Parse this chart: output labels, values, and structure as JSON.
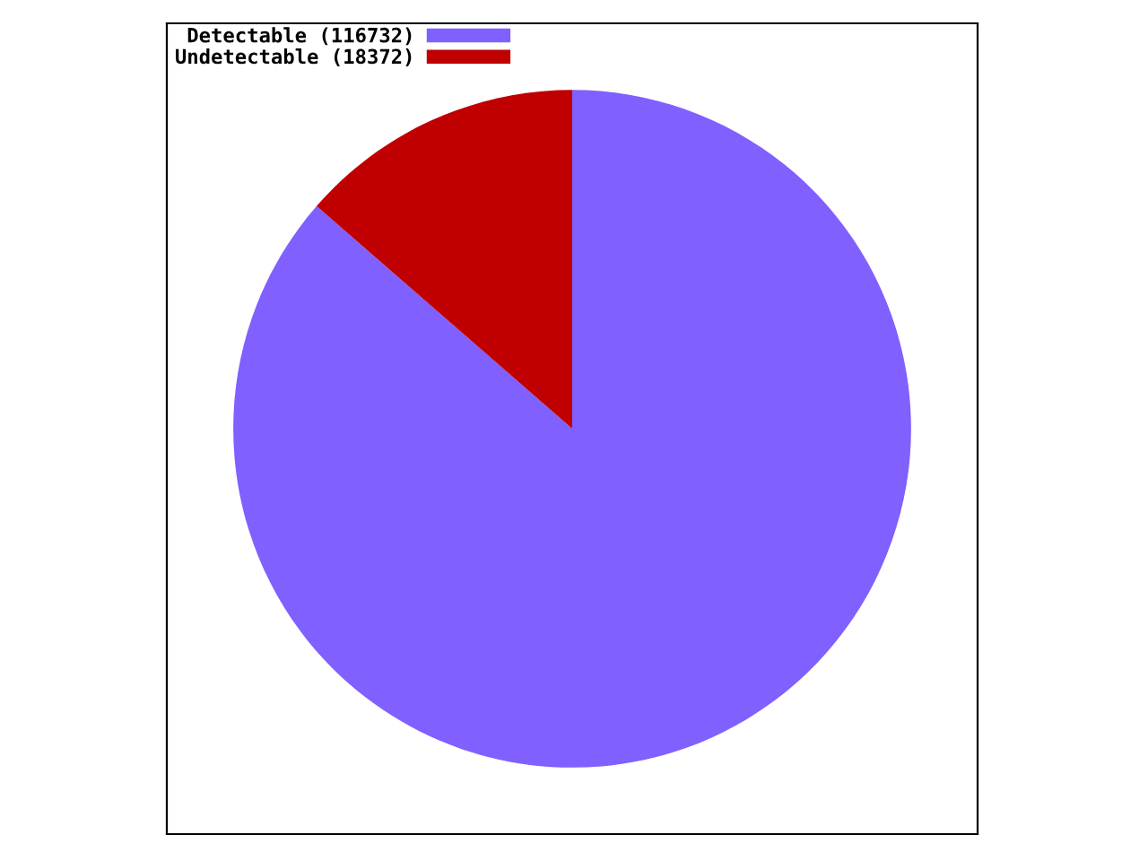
{
  "chart_data": {
    "type": "pie",
    "categories": [
      "Detectable (116732)",
      "Undetectable (18372)"
    ],
    "values": [
      116732,
      18372
    ],
    "colors": [
      "#8060ff",
      "#c00000"
    ],
    "legend": "top left"
  }
}
